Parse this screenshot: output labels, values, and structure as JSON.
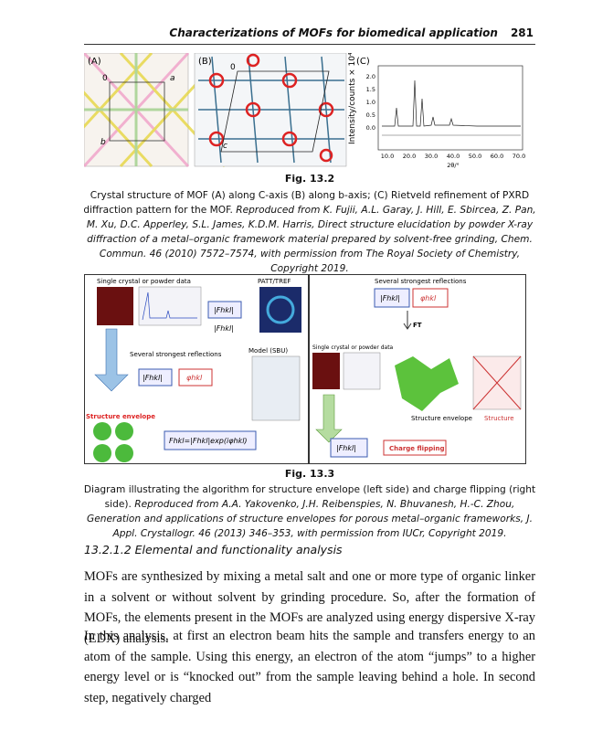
{
  "header": {
    "title": "Characterizations of MOFs for biomedical application",
    "page": "281"
  },
  "figure_1": {
    "panels": [
      "(A)",
      "(B)",
      "(C)"
    ],
    "panel_a_axes": [
      "a",
      "b",
      "0"
    ],
    "panel_b_axes": [
      "0",
      "c"
    ],
    "chart_ylabel": "Intensity/counts × 10⁴",
    "chart_yticks": [
      "2.0",
      "1.5",
      "1.0",
      "0.5",
      "0.0"
    ],
    "chart_xticks": [
      "10.0",
      "20.0",
      "30.0",
      "40.0",
      "50.0",
      "60.0",
      "70.0"
    ],
    "chart_xlabel": "2θ/°",
    "label": "Fig. 13.2",
    "caption": "Crystal structure of MOF (A) along C-axis (B) along b-axis; (C) Rietveld refinement of PXRD diffraction pattern for the MOF.",
    "source": "Reproduced from K. Fujii, A.L. Garay, J. Hill, E. Sbircea, Z. Pan, M. Xu, D.C. Apperley, S.L. James, K.D.M. Harris, Direct structure elucidation by powder X-ray diffraction of a metal–organic framework material prepared by solvent-free grinding, Chem. Commun. 46 (2010) 7572–7574, with permission from The Royal Society of Chemistry, Copyright 2019."
  },
  "figure_2": {
    "left": {
      "data_label": "Single crystal or powder data",
      "patt": "PATT/TREF",
      "f1": "|Fhkl|",
      "f2": "|Fhkl|",
      "strongest": "Several strongest reflections",
      "f3": "|Fhkl|",
      "phi": "φhkl",
      "model": "Model (SBU)",
      "envelope": "Structure envelope",
      "formula": "Fhkl=|Fhkl|exp(iφhkl)"
    },
    "right": {
      "strongest": "Several strongest reflections",
      "f1": "|Fhkl|",
      "phi": "φhkl",
      "ft": "FT",
      "data_label": "Single crystal or powder data",
      "envelope": "Structure envelope",
      "structure": "Structure",
      "f2": "|Fhkl|",
      "flipping": "Charge flipping"
    },
    "label": "Fig. 13.3",
    "caption": "Diagram illustrating the algorithm for structure envelope (left side) and charge flipping (right side).",
    "source": "Reproduced from A.A. Yakovenko, J.H. Reibenspies, N. Bhuvanesh, H.-C. Zhou, Generation and applications of structure envelopes for porous metal–organic frameworks, J. Appl. Crystallogr. 46 (2013) 346–353, with permission from IUCr, Copyright 2019."
  },
  "section": {
    "heading": "13.2.1.2 Elemental and functionality analysis",
    "paragraphs": [
      "MOFs are synthesized by mixing a metal salt and one or more type of organic linker in a solvent or without solvent by grinding procedure. So, after the formation of MOFs, the elements present in the MOFs are analyzed using energy dispersive X-ray (EDX) analysis.",
      "In this analysis, at first an electron beam hits the sample and transfers energy to an atom of the sample. Using this energy, an electron of the atom “jumps” to a higher energy level or is “knocked out” from the sample leaving behind a hole. In second step, negatively charged"
    ]
  }
}
